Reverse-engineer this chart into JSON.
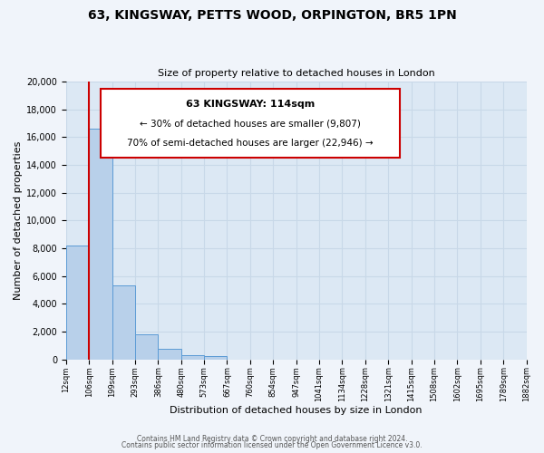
{
  "title": "63, KINGSWAY, PETTS WOOD, ORPINGTON, BR5 1PN",
  "subtitle": "Size of property relative to detached houses in London",
  "xlabel": "Distribution of detached houses by size in London",
  "ylabel": "Number of detached properties",
  "bin_labels": [
    "12sqm",
    "106sqm",
    "199sqm",
    "293sqm",
    "386sqm",
    "480sqm",
    "573sqm",
    "667sqm",
    "760sqm",
    "854sqm",
    "947sqm",
    "1041sqm",
    "1134sqm",
    "1228sqm",
    "1321sqm",
    "1415sqm",
    "1508sqm",
    "1602sqm",
    "1695sqm",
    "1789sqm",
    "1882sqm"
  ],
  "bar_values": [
    8200,
    16600,
    5300,
    1800,
    750,
    280,
    230,
    0,
    0,
    0,
    0,
    0,
    0,
    0,
    0,
    0,
    0,
    0,
    0,
    0
  ],
  "bar_color": "#b8d0ea",
  "bar_edge_color": "#5b9bd5",
  "property_line_x": 1,
  "property_line_color": "#cc0000",
  "annotation_title": "63 KINGSWAY: 114sqm",
  "annotation_line1": "← 30% of detached houses are smaller (9,807)",
  "annotation_line2": "70% of semi-detached houses are larger (22,946) →",
  "annotation_box_color": "#ffffff",
  "annotation_box_edge": "#cc0000",
  "ylim": [
    0,
    20000
  ],
  "yticks": [
    0,
    2000,
    4000,
    6000,
    8000,
    10000,
    12000,
    14000,
    16000,
    18000,
    20000
  ],
  "grid_color": "#c8d8e8",
  "bg_color": "#dce8f4",
  "fig_color": "#f0f4fa",
  "footer1": "Contains HM Land Registry data © Crown copyright and database right 2024.",
  "footer2": "Contains public sector information licensed under the Open Government Licence v3.0."
}
